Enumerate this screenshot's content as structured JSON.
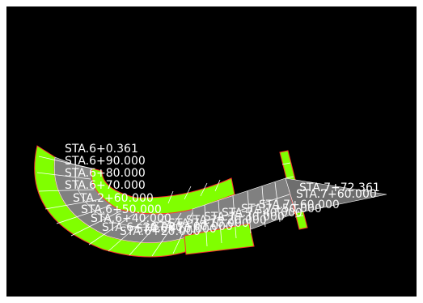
{
  "colors": {
    "background": "#000000",
    "frame": "#ffffff",
    "lane_green": "#80ff00",
    "lane_gray": "#808080",
    "edge_red": "#ff3030",
    "grid_white": "#ffffff",
    "label": "#ffffff"
  },
  "station_labels": [
    {
      "text": "STA.6+0.361"
    },
    {
      "text": "STA.6+90.000"
    },
    {
      "text": "STA.6+80.000"
    },
    {
      "text": "STA.6+70.000"
    },
    {
      "text": "STA.2+60.000"
    },
    {
      "text": "STA.6+50.000"
    },
    {
      "text": "STA.6+40.000"
    },
    {
      "text": "STA.6+30.000"
    }
  ],
  "overlap_labels": [
    {
      "text": "STA.6+20.000"
    },
    {
      "text": "STA.6+10.000"
    },
    {
      "text": "STA.7+00.000"
    },
    {
      "text": "STA.7+10.000"
    },
    {
      "text": "STA.7+20.000"
    },
    {
      "text": "STA.7+30.000"
    },
    {
      "text": "STA.7+40.000"
    },
    {
      "text": "STA.7+50.000"
    },
    {
      "text": "STA.7+60.000"
    }
  ],
  "end_labels": [
    {
      "text": "STA.7+72.361"
    },
    {
      "text": "STA.7+60.000"
    }
  ]
}
